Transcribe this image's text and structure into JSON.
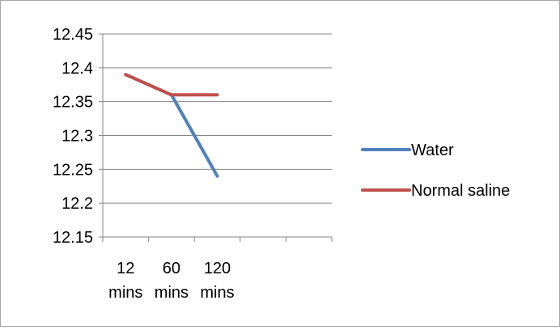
{
  "chart_data": {
    "type": "line",
    "categories": [
      "12 mins",
      "60 mins",
      "120 mins",
      "",
      ""
    ],
    "series": [
      {
        "name": "Water",
        "color": "#4f81bd",
        "values": [
          12.39,
          12.36,
          12.24,
          null,
          null
        ]
      },
      {
        "name": "Normal saline",
        "color": "#c0504d",
        "values": [
          12.39,
          12.36,
          12.36,
          null,
          null
        ]
      }
    ],
    "ylim": [
      12.15,
      12.45
    ],
    "yticks": [
      "12.45",
      "12.4",
      "12.35",
      "12.3",
      "12.25",
      "12.2",
      "12.15"
    ],
    "title": "",
    "xlabel": "",
    "ylabel": "",
    "grid": true,
    "legend_position": "right"
  }
}
